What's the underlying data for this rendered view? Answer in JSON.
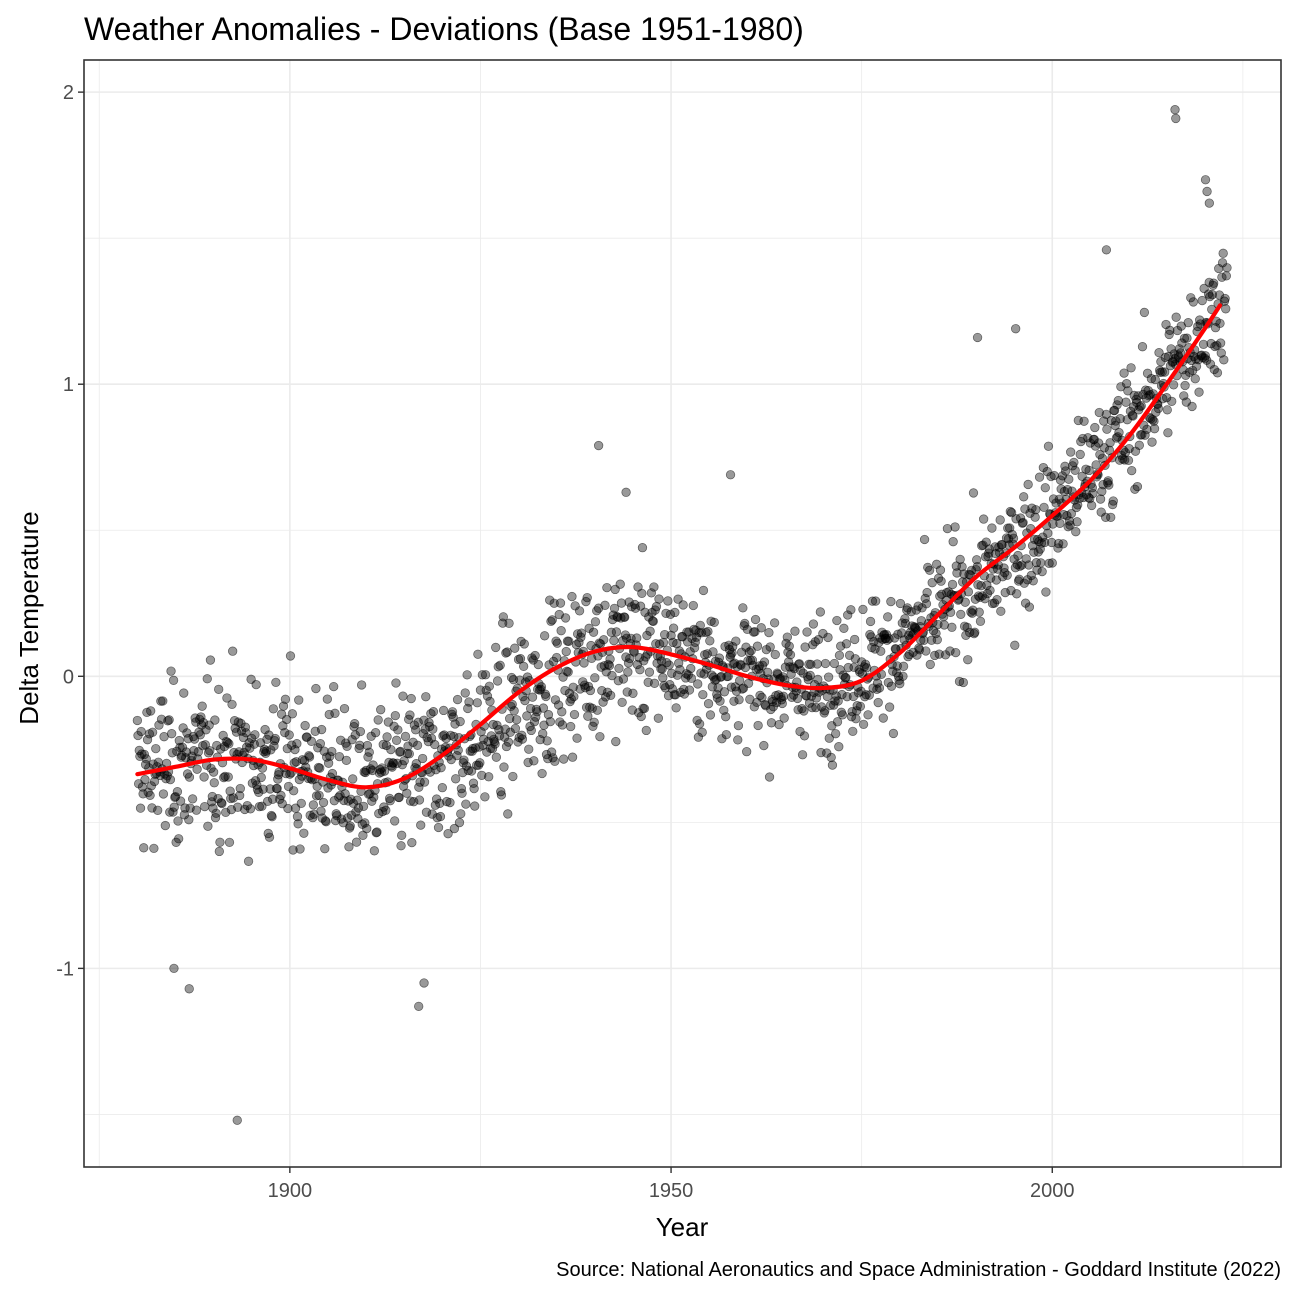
{
  "chart_data": {
    "type": "scatter",
    "title": "Weather Anomalies - Deviations (Base 1951-1980)",
    "xlabel": "Year",
    "ylabel": "Delta Temperature",
    "caption": "Source: National Aeronautics and Space Administration - Goddard Institute (2022)",
    "xlim": [
      1873,
      2030
    ],
    "ylim": [
      -1.68,
      2.11
    ],
    "x_ticks": [
      1900,
      1950,
      2000
    ],
    "x_tick_labels": [
      "1900",
      "1950",
      "2000"
    ],
    "y_ticks": [
      -1,
      0,
      1,
      2
    ],
    "y_tick_labels": [
      "-1",
      "0",
      "1",
      "2"
    ],
    "grid": true,
    "colors": {
      "points": "#000000",
      "point_alpha": 0.4,
      "smooth": "#ff0000",
      "grid": "#ebebeb",
      "border": "#333333"
    },
    "series": [
      {
        "kind": "points",
        "description_of_generation": "monthly anomalies 1880-2022 shown as translucent scatter",
        "x_start": 1880,
        "x_end": 2022.917,
        "monthly_trend_knots": {
          "x": [
            1880,
            1890,
            1900,
            1910,
            1920,
            1930,
            1940,
            1945,
            1950,
            1960,
            1970,
            1980,
            1990,
            2000,
            2010,
            2022
          ],
          "y": [
            -0.33,
            -0.28,
            -0.3,
            -0.38,
            -0.3,
            -0.1,
            0.08,
            0.1,
            0.08,
            0.0,
            -0.03,
            0.1,
            0.3,
            0.55,
            0.85,
            1.27
          ]
        },
        "notable_points": [
          {
            "x": 1893.1,
            "y": -1.52
          },
          {
            "x": 1884.8,
            "y": -1.0
          },
          {
            "x": 1886.8,
            "y": -1.07
          },
          {
            "x": 1916.9,
            "y": -1.13
          },
          {
            "x": 1917.6,
            "y": -1.05
          },
          {
            "x": 1940.5,
            "y": 0.79
          },
          {
            "x": 1944.1,
            "y": 0.63
          },
          {
            "x": 1957.8,
            "y": 0.69
          },
          {
            "x": 2016.1,
            "y": 1.94
          },
          {
            "x": 2016.2,
            "y": 1.91
          },
          {
            "x": 2020.1,
            "y": 1.7
          },
          {
            "x": 2020.3,
            "y": 1.66
          },
          {
            "x": 2020.6,
            "y": 1.62
          },
          {
            "x": 2007.1,
            "y": 1.46
          },
          {
            "x": 1995.2,
            "y": 1.19
          },
          {
            "x": 1990.2,
            "y": 1.16
          }
        ]
      },
      {
        "kind": "smooth",
        "x": [
          1880,
          1885,
          1890,
          1895,
          1900,
          1905,
          1910,
          1915,
          1920,
          1925,
          1930,
          1935,
          1940,
          1945,
          1950,
          1955,
          1960,
          1965,
          1970,
          1975,
          1980,
          1985,
          1990,
          1995,
          2000,
          2005,
          2010,
          2015,
          2020,
          2022
        ],
        "y": [
          -0.335,
          -0.31,
          -0.285,
          -0.285,
          -0.315,
          -0.355,
          -0.38,
          -0.35,
          -0.27,
          -0.165,
          -0.055,
          0.03,
          0.085,
          0.1,
          0.075,
          0.04,
          0.0,
          -0.03,
          -0.04,
          -0.015,
          0.08,
          0.21,
          0.34,
          0.44,
          0.55,
          0.67,
          0.82,
          1.0,
          1.19,
          1.27
        ]
      }
    ]
  }
}
